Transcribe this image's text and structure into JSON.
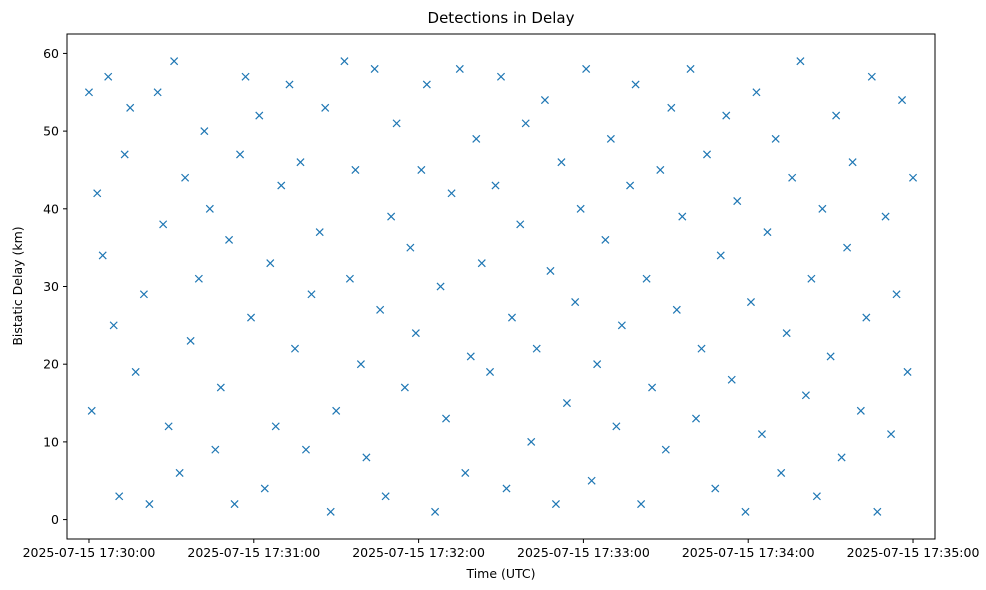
{
  "chart_data": {
    "type": "scatter",
    "title": "Detections in Delay",
    "xlabel": "Time (UTC)",
    "ylabel": "Bistatic Delay (km)",
    "marker": "x",
    "color": "#1f77b4",
    "grid": false,
    "legend": "none",
    "xlim": [
      "2025-07-15 17:29:52",
      "2025-07-15 17:35:08"
    ],
    "ylim": [
      -2.5,
      62.5
    ],
    "x_ticks": [
      "2025-07-15 17:30:00",
      "2025-07-15 17:31:00",
      "2025-07-15 17:32:00",
      "2025-07-15 17:33:00",
      "2025-07-15 17:34:00",
      "2025-07-15 17:35:00"
    ],
    "y_ticks": [
      0,
      10,
      20,
      30,
      40,
      50,
      60
    ],
    "series": [
      {
        "x": [
          "2025-07-15 17:30:00",
          "2025-07-15 17:30:01",
          "2025-07-15 17:30:03",
          "2025-07-15 17:30:05",
          "2025-07-15 17:30:07",
          "2025-07-15 17:30:09",
          "2025-07-15 17:30:11",
          "2025-07-15 17:30:13",
          "2025-07-15 17:30:15",
          "2025-07-15 17:30:17",
          "2025-07-15 17:30:20",
          "2025-07-15 17:30:22",
          "2025-07-15 17:30:25",
          "2025-07-15 17:30:27",
          "2025-07-15 17:30:29",
          "2025-07-15 17:30:31",
          "2025-07-15 17:30:33",
          "2025-07-15 17:30:35",
          "2025-07-15 17:30:37",
          "2025-07-15 17:30:40",
          "2025-07-15 17:30:42",
          "2025-07-15 17:30:44",
          "2025-07-15 17:30:46",
          "2025-07-15 17:30:48",
          "2025-07-15 17:30:51",
          "2025-07-15 17:30:53",
          "2025-07-15 17:30:55",
          "2025-07-15 17:30:57",
          "2025-07-15 17:30:59",
          "2025-07-15 17:31:02",
          "2025-07-15 17:31:04",
          "2025-07-15 17:31:06",
          "2025-07-15 17:31:08",
          "2025-07-15 17:31:10",
          "2025-07-15 17:31:13",
          "2025-07-15 17:31:15",
          "2025-07-15 17:31:17",
          "2025-07-15 17:31:19",
          "2025-07-15 17:31:21",
          "2025-07-15 17:31:24",
          "2025-07-15 17:31:26",
          "2025-07-15 17:31:28",
          "2025-07-15 17:31:30",
          "2025-07-15 17:31:33",
          "2025-07-15 17:31:35",
          "2025-07-15 17:31:37",
          "2025-07-15 17:31:39",
          "2025-07-15 17:31:41",
          "2025-07-15 17:31:44",
          "2025-07-15 17:31:46",
          "2025-07-15 17:31:48",
          "2025-07-15 17:31:50",
          "2025-07-15 17:31:52",
          "2025-07-15 17:31:55",
          "2025-07-15 17:31:57",
          "2025-07-15 17:31:59",
          "2025-07-15 17:32:01",
          "2025-07-15 17:32:03",
          "2025-07-15 17:32:06",
          "2025-07-15 17:32:08",
          "2025-07-15 17:32:10",
          "2025-07-15 17:32:12",
          "2025-07-15 17:32:15",
          "2025-07-15 17:32:17",
          "2025-07-15 17:32:19",
          "2025-07-15 17:32:21",
          "2025-07-15 17:32:23",
          "2025-07-15 17:32:26",
          "2025-07-15 17:32:28",
          "2025-07-15 17:32:30",
          "2025-07-15 17:32:32",
          "2025-07-15 17:32:34",
          "2025-07-15 17:32:37",
          "2025-07-15 17:32:39",
          "2025-07-15 17:32:41",
          "2025-07-15 17:32:43",
          "2025-07-15 17:32:46",
          "2025-07-15 17:32:48",
          "2025-07-15 17:32:50",
          "2025-07-15 17:32:52",
          "2025-07-15 17:32:54",
          "2025-07-15 17:32:57",
          "2025-07-15 17:32:59",
          "2025-07-15 17:33:01",
          "2025-07-15 17:33:03",
          "2025-07-15 17:33:05",
          "2025-07-15 17:33:08",
          "2025-07-15 17:33:10",
          "2025-07-15 17:33:12",
          "2025-07-15 17:33:14",
          "2025-07-15 17:33:17",
          "2025-07-15 17:33:19",
          "2025-07-15 17:33:21",
          "2025-07-15 17:33:23",
          "2025-07-15 17:33:25",
          "2025-07-15 17:33:28",
          "2025-07-15 17:33:30",
          "2025-07-15 17:33:32",
          "2025-07-15 17:33:34",
          "2025-07-15 17:33:36",
          "2025-07-15 17:33:39",
          "2025-07-15 17:33:41",
          "2025-07-15 17:33:43",
          "2025-07-15 17:33:45",
          "2025-07-15 17:33:48",
          "2025-07-15 17:33:50",
          "2025-07-15 17:33:52",
          "2025-07-15 17:33:54",
          "2025-07-15 17:33:56",
          "2025-07-15 17:33:59",
          "2025-07-15 17:34:01",
          "2025-07-15 17:34:03",
          "2025-07-15 17:34:05",
          "2025-07-15 17:34:07",
          "2025-07-15 17:34:10",
          "2025-07-15 17:34:12",
          "2025-07-15 17:34:14",
          "2025-07-15 17:34:16",
          "2025-07-15 17:34:19",
          "2025-07-15 17:34:21",
          "2025-07-15 17:34:23",
          "2025-07-15 17:34:25",
          "2025-07-15 17:34:27",
          "2025-07-15 17:34:30",
          "2025-07-15 17:34:32",
          "2025-07-15 17:34:34",
          "2025-07-15 17:34:36",
          "2025-07-15 17:34:38",
          "2025-07-15 17:34:41",
          "2025-07-15 17:34:43",
          "2025-07-15 17:34:45",
          "2025-07-15 17:34:47",
          "2025-07-15 17:34:50",
          "2025-07-15 17:34:52",
          "2025-07-15 17:34:54",
          "2025-07-15 17:34:56",
          "2025-07-15 17:34:58",
          "2025-07-15 17:35:00"
        ],
        "y": [
          55,
          14,
          42,
          34,
          57,
          25,
          3,
          47,
          53,
          19,
          29,
          2,
          55,
          38,
          12,
          59,
          6,
          44,
          23,
          31,
          50,
          40,
          9,
          17,
          36,
          2,
          47,
          57,
          26,
          52,
          4,
          33,
          12,
          43,
          56,
          22,
          46,
          9,
          29,
          37,
          53,
          1,
          14,
          59,
          31,
          45,
          20,
          8,
          58,
          27,
          3,
          39,
          51,
          17,
          35,
          24,
          45,
          56,
          1,
          30,
          13,
          42,
          58,
          6,
          21,
          49,
          33,
          19,
          43,
          57,
          4,
          26,
          38,
          51,
          10,
          22,
          54,
          32,
          2,
          46,
          15,
          28,
          40,
          58,
          5,
          20,
          36,
          49,
          12,
          25,
          43,
          56,
          2,
          31,
          17,
          45,
          9,
          53,
          27,
          39,
          58,
          13,
          22,
          47,
          4,
          34,
          52,
          18,
          41,
          1,
          28,
          55,
          11,
          37,
          49,
          6,
          24,
          44,
          59,
          16,
          31,
          3,
          40,
          21,
          52,
          8,
          35,
          46,
          14,
          26,
          57,
          1,
          39,
          11,
          29,
          54,
          19,
          44
        ]
      }
    ]
  }
}
